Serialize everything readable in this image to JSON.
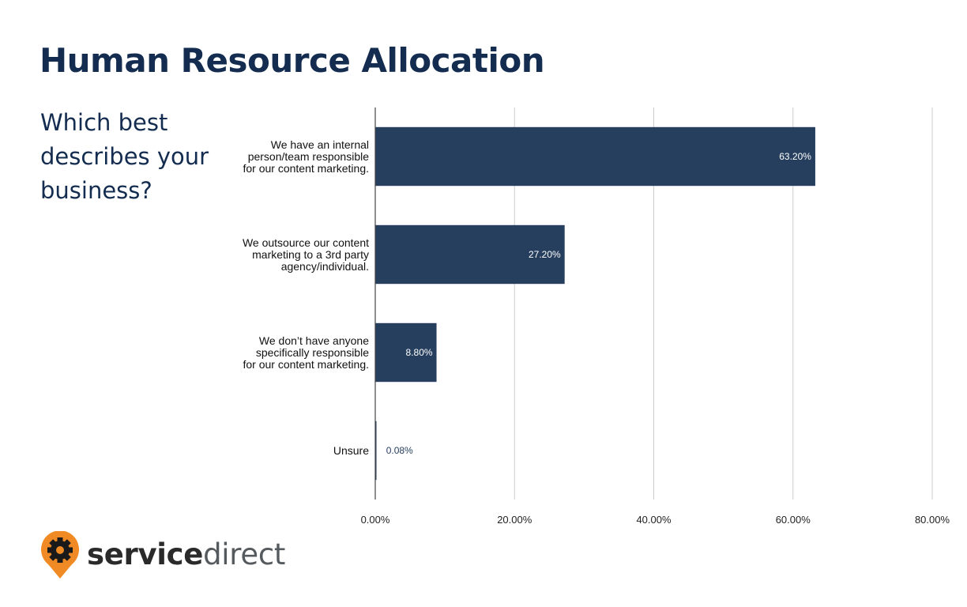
{
  "header": {
    "title": "Human Resource Allocation"
  },
  "question": "Which best describes your business?",
  "brand": {
    "bold": "service",
    "light": "direct",
    "icon": "gear-pin-icon",
    "color": "#f08a24"
  },
  "chart_data": {
    "type": "bar",
    "orientation": "horizontal",
    "categories": [
      [
        "We have an internal",
        "person/team responsible",
        "for our content marketing."
      ],
      [
        "We outsource our content",
        "marketing to a 3rd party",
        "agency/individual."
      ],
      [
        "We don’t have anyone",
        "specifically responsible",
        "for our content marketing."
      ],
      [
        "Unsure"
      ]
    ],
    "values": [
      63.2,
      27.2,
      8.8,
      0.08
    ],
    "data_labels": [
      "63.20%",
      "27.20%",
      "8.80%",
      "0.08%"
    ],
    "xlim": [
      0,
      80
    ],
    "xticks": [
      0,
      20,
      40,
      60,
      80
    ],
    "xtick_labels": [
      "0.00%",
      "20.00%",
      "40.00%",
      "60.00%",
      "80.00%"
    ],
    "grid": "vertical",
    "bar_color": "#263f5e",
    "gridline_color": "#cccccc",
    "title": "",
    "xlabel": "",
    "ylabel": ""
  }
}
